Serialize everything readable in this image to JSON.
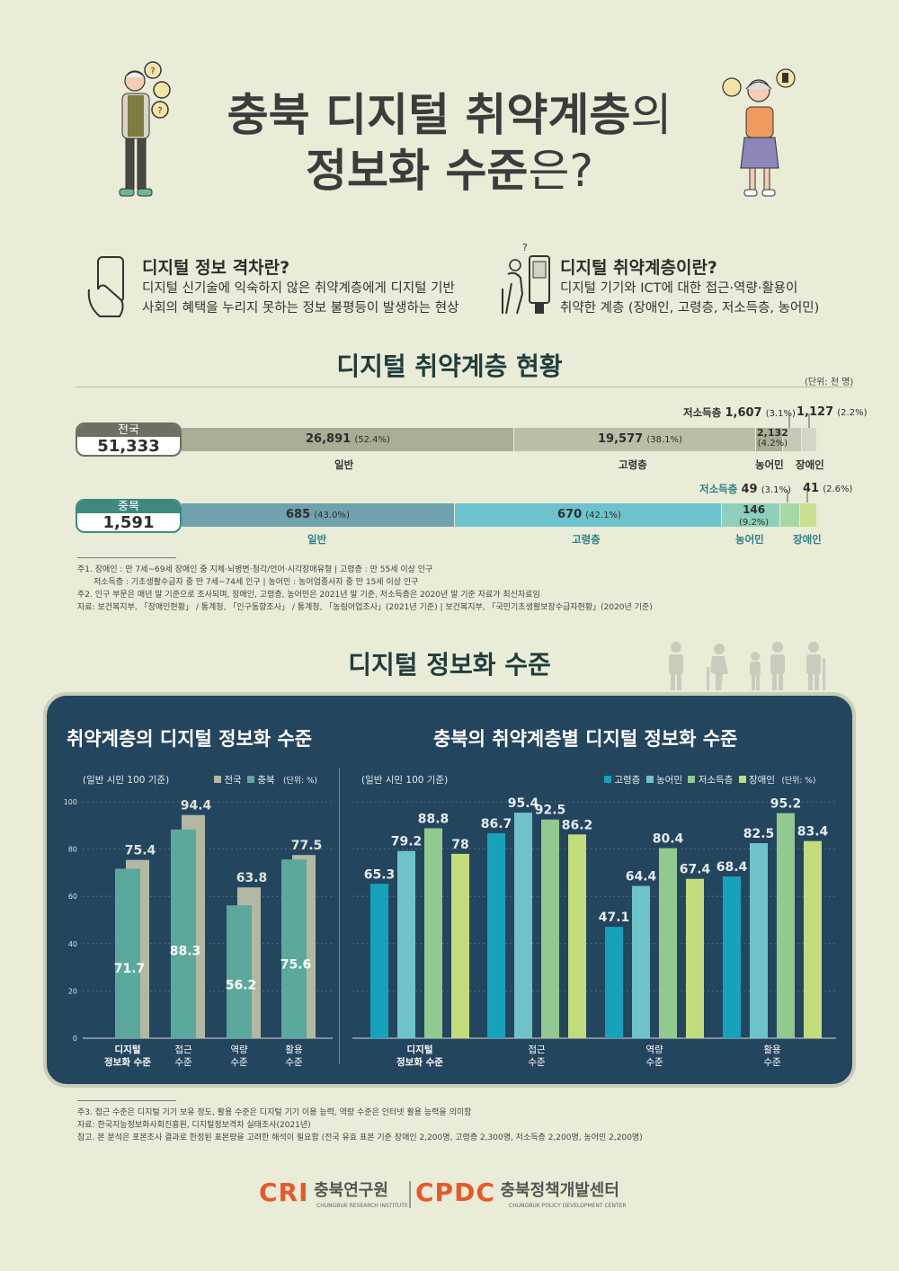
{
  "header": {
    "title_line1_bold": "충북 디지털 취약계층",
    "title_line1_rest": "의",
    "title_line2_bold": "정보화 수준",
    "title_line2_rest": "은?"
  },
  "definitions": [
    {
      "title": "디지털 정보 격차란?",
      "lines": [
        "디지털 신기술에 익숙하지 않은 취약계층에게 디지털 기반",
        "사회의 혜택을 누리지 못하는 정보 불평등이 발생하는 현상"
      ]
    },
    {
      "title": "디지털 취약계층이란?",
      "lines": [
        "디지털 기기와 ICT에 대한 접근·역량·활용이",
        "취약한 계층 (장애인, 고령층, 저소득층, 농어민)"
      ]
    }
  ],
  "status": {
    "title": "디지털 취약계층 현황",
    "unit": "(단위: 천 명)",
    "national": {
      "label": "전국",
      "total": "51,333",
      "segments": [
        {
          "name": "일반",
          "value": "26,891",
          "pct": "(52.4%)",
          "share": 52.4,
          "color": "#a7ae95"
        },
        {
          "name": "고령층",
          "value": "19,577",
          "pct": "(38.1%)",
          "share": 38.1,
          "color": "#b9bfa7"
        },
        {
          "name": "농어민",
          "value": "2,132",
          "pct": "(4.2%)",
          "share": 4.2,
          "color": "#a7ae95"
        },
        {
          "name": "저소득층",
          "value": "1,607",
          "pct": "(3.1%)",
          "share": 3.1,
          "color": "#c4c9b3"
        },
        {
          "name": "장애인",
          "value": "1,127",
          "pct": "(2.2%)",
          "share": 2.2,
          "color": "#d3d7c3"
        }
      ]
    },
    "chungbuk": {
      "label": "충북",
      "total": "1,591",
      "segments": [
        {
          "name": "일반",
          "value": "685",
          "pct": "(43.0%)",
          "share": 43.0,
          "color": "#6fa2ac"
        },
        {
          "name": "고령층",
          "value": "670",
          "pct": "(42.1%)",
          "share": 42.1,
          "color": "#6cc3cd"
        },
        {
          "name": "농어민",
          "value": "146",
          "pct": "(9.2%)",
          "share": 9.2,
          "color": "#8ed0bb"
        },
        {
          "name": "저소득층",
          "value": "49",
          "pct": "(3.1%)",
          "share": 3.1,
          "color": "#a7d7a5"
        },
        {
          "name": "장애인",
          "value": "41",
          "pct": "(2.6%)",
          "share": 2.6,
          "color": "#c9e08f"
        }
      ]
    },
    "notes": [
      "주1. 장애인 : 만 7세~69세 장애인 중 지체·뇌병변·청각/언어·시각장애유형 | 고령층 : 만 55세 이상 인구",
      "저소득층 : 기초생활수급자 중 만 7세~74세 인구 | 농어민 : 농어업종사자 중 만 15세 이상 인구",
      "주2. 인구 부문은 매년 말 기준으로 조사되며, 장애인, 고령층, 농어민은 2021년 말 기준, 저소득층은 2020년 말 기준 자료가 최신자료임",
      "자료: 보건복지부, 「장애인현황」 / 통계청, 「인구동향조사」 / 통계청, 「농림어업조사」(2021년 기준) | 보건복지부, 「국민기초생활보장수급자현황」(2020년 기준)"
    ]
  },
  "level_section": {
    "title": "디지털 정보화 수준"
  },
  "chart_data": [
    {
      "type": "bar",
      "title": "취약계층의 디지털 정보화 수준",
      "subtitle": "(일반 시민 100 기준)",
      "unit": "(단위: %)",
      "categories": [
        "디지털 정보화 수준",
        "접근 수준",
        "역량 수준",
        "활용 수준"
      ],
      "series": [
        {
          "name": "전국",
          "values": [
            75.4,
            94.4,
            63.8,
            77.5
          ],
          "color": "#b2b8a1"
        },
        {
          "name": "충북",
          "values": [
            71.7,
            88.3,
            56.2,
            75.6
          ],
          "color": "#5aa99c"
        }
      ],
      "ylim": [
        0,
        100
      ],
      "yticks": [
        0,
        20,
        40,
        60,
        80,
        100
      ],
      "grid": true
    },
    {
      "type": "bar",
      "title": "충북의 취약계층별 디지털 정보화 수준",
      "subtitle": "(일반 시민 100 기준)",
      "unit": "(단위: %)",
      "categories": [
        "디지털 정보화 수준",
        "접근 수준",
        "역량 수준",
        "활용 수준"
      ],
      "series": [
        {
          "name": "고령층",
          "values": [
            65.3,
            86.7,
            47.1,
            68.4
          ],
          "color": "#16a2ba"
        },
        {
          "name": "농어민",
          "values": [
            79.2,
            95.4,
            64.4,
            82.5
          ],
          "color": "#6ec3c8"
        },
        {
          "name": "저소득층",
          "values": [
            88.8,
            92.5,
            80.4,
            95.2
          ],
          "color": "#92c98e"
        },
        {
          "name": "장애인",
          "values": [
            78.0,
            86.2,
            67.4,
            83.4
          ],
          "color": "#c2dc7c"
        }
      ],
      "ylim": [
        0,
        100
      ],
      "grid": true
    }
  ],
  "level_notes": [
    "주3. 접근 수준은 디지털 기기 보유 정도, 활용 수준은 디지털 기기 이용 능력, 역량 수준은 인터넷 활용 능력을 의미함",
    "자료: 한국지능정보화사회진흥원, 디지털정보격차 실태조사(2021년)",
    "참고. 본 분석은 포본조사 결과로 한정된 표본량을 고려한 해석이 필요함 (전국 유효 표본 기준 장애인 2,200명, 고령층 2,300명, 저소득층 2,200명, 농어민 2,200명)"
  ],
  "footer": {
    "logo1_mark": "CRI",
    "logo1_name": "충북연구원",
    "logo1_sub": "CHUNGBUK RESEARCH INSTITUTE",
    "logo2_mark": "CPDC",
    "logo2_name": "충북정책개발센터",
    "logo2_sub": "CHUNGBUK POLICY DEVELOPMENT CENTER",
    "brand_color": "#e8592a"
  }
}
